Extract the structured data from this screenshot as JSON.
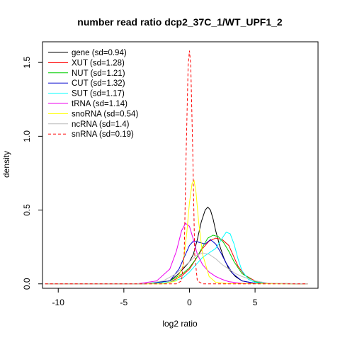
{
  "chart_data": {
    "type": "line",
    "title": "number read ratio dcp2_37C_1/WT_UPF1_2",
    "xlabel": "log2 ratio",
    "ylabel": "density",
    "xlim": [
      -11.2,
      9.8
    ],
    "ylim": [
      -0.03,
      1.64
    ],
    "xticks": [
      -10,
      -5,
      0,
      5
    ],
    "yticks": [
      0.0,
      0.5,
      1.0,
      1.5
    ],
    "xtick_labels": [
      "-10",
      "-5",
      "0",
      "5"
    ],
    "ytick_labels": [
      "0.0",
      "0.5",
      "1.0",
      "1.5"
    ],
    "legend_position": "top-left",
    "grid": false,
    "series": [
      {
        "name": "gene (sd=0.94)",
        "color": "#000000",
        "dash": "solid",
        "x": [
          -11,
          -3.5,
          -1.5,
          -0.8,
          -0.3,
          0,
          0.3,
          0.6,
          0.9,
          1.2,
          1.4,
          1.6,
          1.8,
          2.0,
          2.3,
          2.6,
          3.0,
          3.5,
          4.0,
          5.0,
          9
        ],
        "y": [
          0,
          0,
          0.02,
          0.07,
          0.12,
          0.15,
          0.2,
          0.3,
          0.42,
          0.5,
          0.52,
          0.5,
          0.44,
          0.36,
          0.26,
          0.18,
          0.1,
          0.05,
          0.02,
          0.003,
          0
        ]
      },
      {
        "name": "XUT (sd=1.28)",
        "color": "#ff0000",
        "dash": "solid",
        "x": [
          -11,
          -3.5,
          -1.5,
          -0.5,
          0,
          0.5,
          1.0,
          1.5,
          2.0,
          2.5,
          3.0,
          3.3,
          3.7,
          4.2,
          5.0,
          6.0,
          9
        ],
        "y": [
          0,
          0,
          0.01,
          0.06,
          0.1,
          0.17,
          0.24,
          0.29,
          0.31,
          0.3,
          0.26,
          0.2,
          0.12,
          0.06,
          0.02,
          0.003,
          0
        ]
      },
      {
        "name": "NUT (sd=1.21)",
        "color": "#00cd00",
        "dash": "solid",
        "x": [
          -11,
          -3.5,
          -1.5,
          -0.5,
          0,
          0.5,
          1.0,
          1.4,
          1.8,
          2.2,
          2.6,
          3.0,
          3.4,
          4.0,
          5.0,
          6.0,
          9
        ],
        "y": [
          0,
          0,
          0.02,
          0.07,
          0.11,
          0.17,
          0.25,
          0.31,
          0.33,
          0.32,
          0.28,
          0.22,
          0.15,
          0.07,
          0.015,
          0.002,
          0
        ]
      },
      {
        "name": "CUT (sd=1.32)",
        "color": "#0000cd",
        "dash": "solid",
        "x": [
          -11,
          -3.5,
          -1.5,
          -0.8,
          -0.3,
          0,
          0.3,
          0.8,
          1.2,
          1.6,
          2.0,
          2.4,
          2.8,
          3.3,
          4.0,
          5.0,
          9
        ],
        "y": [
          0,
          0,
          0.02,
          0.1,
          0.2,
          0.26,
          0.29,
          0.28,
          0.27,
          0.3,
          0.27,
          0.21,
          0.14,
          0.07,
          0.02,
          0.004,
          0
        ]
      },
      {
        "name": "SUT (sd=1.17)",
        "color": "#00ffff",
        "dash": "solid",
        "x": [
          -11,
          -3.5,
          -1.5,
          -0.5,
          0,
          0.5,
          1.0,
          1.5,
          2.0,
          2.5,
          2.8,
          3.1,
          3.4,
          3.7,
          4.0,
          4.5,
          5.0,
          6.0,
          9
        ],
        "y": [
          0,
          0,
          0.01,
          0.04,
          0.08,
          0.13,
          0.18,
          0.21,
          0.24,
          0.31,
          0.35,
          0.34,
          0.27,
          0.17,
          0.09,
          0.03,
          0.01,
          0.001,
          0
        ]
      },
      {
        "name": "tRNA (sd=1.14)",
        "color": "#ee00ee",
        "dash": "solid",
        "x": [
          -11,
          -4,
          -2.5,
          -1.5,
          -1.0,
          -0.6,
          -0.3,
          0,
          0.3,
          0.6,
          1.0,
          1.5,
          2.0,
          2.5,
          3.0,
          4.0,
          9
        ],
        "y": [
          0,
          0,
          0.02,
          0.1,
          0.22,
          0.36,
          0.41,
          0.39,
          0.3,
          0.2,
          0.13,
          0.08,
          0.05,
          0.03,
          0.015,
          0.003,
          0
        ]
      },
      {
        "name": "snoRNA (sd=0.54)",
        "color": "#ffff00",
        "dash": "solid",
        "x": [
          -11,
          -2,
          -1.0,
          -0.5,
          -0.2,
          0,
          0.2,
          0.35,
          0.5,
          0.7,
          1.0,
          1.5,
          2.0,
          3.0,
          9
        ],
        "y": [
          0,
          0,
          0.02,
          0.12,
          0.35,
          0.55,
          0.68,
          0.7,
          0.62,
          0.42,
          0.2,
          0.05,
          0.01,
          0.001,
          0
        ]
      },
      {
        "name": "ncRNA (sd=1.4)",
        "color": "#bebebe",
        "dash": "solid",
        "x": [
          -11,
          -3.5,
          -2.0,
          -1.0,
          -0.5,
          0,
          0.5,
          1.0,
          1.5,
          2.0,
          2.5,
          3.0,
          3.5,
          4.0,
          5.0,
          6.0,
          9
        ],
        "y": [
          0,
          0,
          0.02,
          0.07,
          0.11,
          0.15,
          0.19,
          0.21,
          0.2,
          0.17,
          0.13,
          0.1,
          0.07,
          0.05,
          0.02,
          0.005,
          0
        ]
      },
      {
        "name": "snRNA (sd=0.19)",
        "color": "#ff0000",
        "dash": "dashed",
        "x": [
          -11,
          -1.0,
          -0.6,
          -0.4,
          -0.25,
          -0.1,
          0,
          0.1,
          0.25,
          0.4,
          0.6,
          1.0,
          9
        ],
        "y": [
          0,
          0,
          0.02,
          0.2,
          0.9,
          1.48,
          1.58,
          1.48,
          0.9,
          0.2,
          0.02,
          0,
          0
        ]
      }
    ]
  }
}
